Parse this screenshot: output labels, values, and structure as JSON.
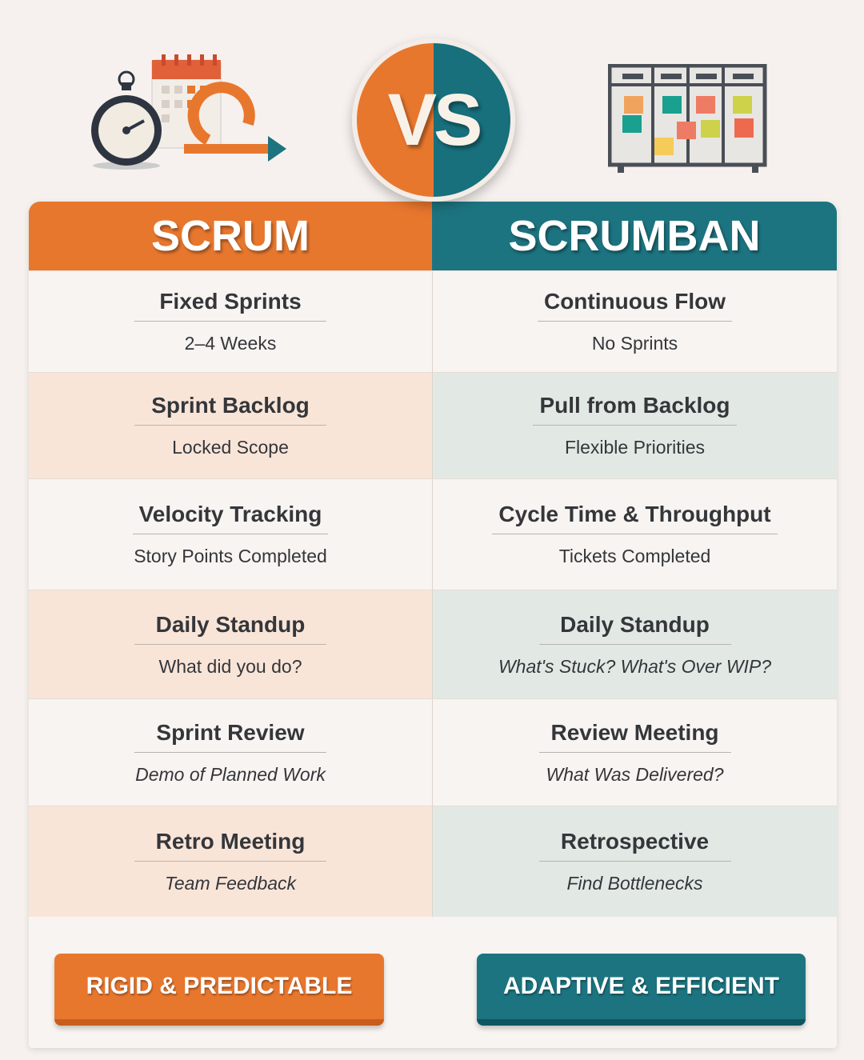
{
  "vs_label": "VS",
  "colors": {
    "scrum": "#e8772e",
    "scrumban": "#1c7480"
  },
  "icons": {
    "left": "stopwatch-calendar-cycle-icon",
    "right": "kanban-board-icon"
  },
  "headers": {
    "left": "SCRUM",
    "right": "SCRUMBAN"
  },
  "rows": [
    {
      "left": {
        "title": "Fixed Sprints",
        "sub": "2–4 Weeks"
      },
      "right": {
        "title": "Continuous Flow",
        "sub": "No Sprints"
      }
    },
    {
      "left": {
        "title": "Sprint Backlog",
        "sub": "Locked Scope"
      },
      "right": {
        "title": "Pull from Backlog",
        "sub": "Flexible Priorities"
      }
    },
    {
      "left": {
        "title": "Velocity Tracking",
        "sub": "Story Points Completed"
      },
      "right": {
        "title": "Cycle Time & Throughput",
        "sub": "Tickets Completed"
      }
    },
    {
      "left": {
        "title": "Daily Standup",
        "sub": "What did you do?"
      },
      "right": {
        "title": "Daily Standup",
        "sub": "What's Stuck? What's Over WIP?"
      }
    },
    {
      "left": {
        "title": "Sprint Review",
        "sub": "Demo of Planned Work"
      },
      "right": {
        "title": "Review Meeting",
        "sub": "What Was Delivered?"
      }
    },
    {
      "left": {
        "title": "Retro Meeting",
        "sub": "Team Feedback"
      },
      "right": {
        "title": "Retrospective",
        "sub": "Find Bottlenecks"
      }
    }
  ],
  "footer": {
    "left": "RIGID & PREDICTABLE",
    "right": "ADAPTIVE & EFFICIENT"
  }
}
